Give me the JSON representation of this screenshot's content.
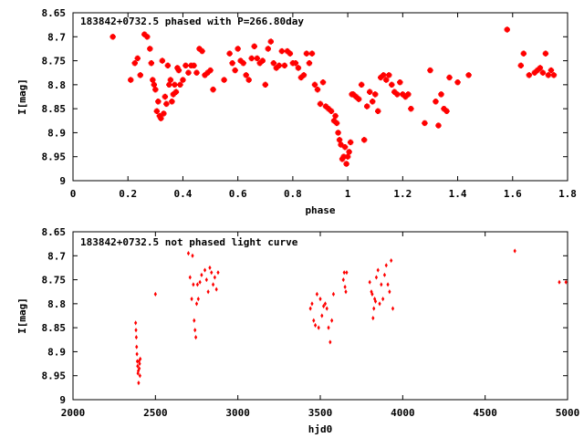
{
  "chart_data": [
    {
      "type": "scatter",
      "title": "183842+0732.5 phased with P=266.80day",
      "xlabel": "phase",
      "ylabel": "I[mag]",
      "xlim": [
        0,
        1.8
      ],
      "ylim": [
        9,
        8.65
      ],
      "y_inverted": true,
      "grid": false,
      "marker_color": "#ff0000",
      "marker": "star",
      "x_ticks": [
        "0",
        "0.2",
        "0.4",
        "0.6",
        "0.8",
        "1",
        "1.2",
        "1.4",
        "1.6",
        "1.8"
      ],
      "y_ticks": [
        "8.65",
        "8.7",
        "8.75",
        "8.8",
        "8.85",
        "8.9",
        "8.95",
        "9"
      ],
      "series": [
        {
          "x": [
            0.145,
            0.21,
            0.225,
            0.235,
            0.245,
            0.26,
            0.27,
            0.28,
            0.285,
            0.29,
            0.295,
            0.3,
            0.305,
            0.31,
            0.315,
            0.32,
            0.325,
            0.33,
            0.335,
            0.34,
            0.345,
            0.35,
            0.355,
            0.36,
            0.365,
            0.37,
            0.375,
            0.38,
            0.385,
            0.39,
            0.4,
            0.41,
            0.42,
            0.43,
            0.44,
            0.45,
            0.46,
            0.47,
            0.48,
            0.49,
            0.5,
            0.51,
            0.55,
            0.57,
            0.58,
            0.59,
            0.6,
            0.61,
            0.62,
            0.63,
            0.64,
            0.65,
            0.66,
            0.67,
            0.68,
            0.69,
            0.7,
            0.71,
            0.72,
            0.73,
            0.74,
            0.75,
            0.76,
            0.77,
            0.78,
            0.79,
            0.8,
            0.81,
            0.82,
            0.83,
            0.84,
            0.85,
            0.86,
            0.87,
            0.88,
            0.89,
            0.9,
            0.91,
            0.92,
            0.93,
            0.94,
            0.95,
            0.955,
            0.96,
            0.965,
            0.97,
            0.975,
            0.98,
            0.985,
            0.99,
            0.995,
            1.0,
            1.005,
            1.01,
            1.015,
            1.02,
            1.03,
            1.04,
            1.05,
            1.06,
            1.07,
            1.08,
            1.09,
            1.1,
            1.11,
            1.12,
            1.13,
            1.14,
            1.15,
            1.16,
            1.17,
            1.18,
            1.19,
            1.2,
            1.21,
            1.22,
            1.23,
            1.28,
            1.3,
            1.32,
            1.33,
            1.34,
            1.35,
            1.36,
            1.37,
            1.4,
            1.44,
            1.58,
            1.63,
            1.64,
            1.66,
            1.68,
            1.69,
            1.7,
            1.71,
            1.72,
            1.73,
            1.74,
            1.75
          ],
          "y": [
            8.7,
            8.79,
            8.755,
            8.745,
            8.78,
            8.695,
            8.7,
            8.725,
            8.755,
            8.79,
            8.8,
            8.81,
            8.855,
            8.835,
            8.865,
            8.87,
            8.75,
            8.86,
            8.825,
            8.84,
            8.76,
            8.8,
            8.79,
            8.835,
            8.82,
            8.8,
            8.815,
            8.765,
            8.77,
            8.8,
            8.79,
            8.76,
            8.775,
            8.76,
            8.76,
            8.775,
            8.725,
            8.73,
            8.78,
            8.775,
            8.77,
            8.81,
            8.79,
            8.735,
            8.755,
            8.77,
            8.725,
            8.75,
            8.755,
            8.78,
            8.79,
            8.745,
            8.72,
            8.745,
            8.755,
            8.75,
            8.8,
            8.725,
            8.71,
            8.755,
            8.765,
            8.76,
            8.73,
            8.76,
            8.73,
            8.735,
            8.755,
            8.755,
            8.765,
            8.785,
            8.78,
            8.735,
            8.755,
            8.735,
            8.8,
            8.81,
            8.84,
            8.795,
            8.845,
            8.85,
            8.855,
            8.875,
            8.865,
            8.88,
            8.9,
            8.915,
            8.925,
            8.955,
            8.95,
            8.93,
            8.965,
            8.95,
            8.94,
            8.92,
            8.82,
            8.82,
            8.825,
            8.83,
            8.8,
            8.915,
            8.845,
            8.815,
            8.835,
            8.82,
            8.855,
            8.785,
            8.78,
            8.79,
            8.78,
            8.8,
            8.815,
            8.82,
            8.795,
            8.82,
            8.825,
            8.82,
            8.85,
            8.88,
            8.77,
            8.835,
            8.885,
            8.82,
            8.85,
            8.855,
            8.785,
            8.795,
            8.78,
            8.685,
            8.76,
            8.735,
            8.78,
            8.775,
            8.77,
            8.765,
            8.775,
            8.735,
            8.78,
            8.77,
            8.78
          ]
        }
      ]
    },
    {
      "type": "scatter",
      "title": "183842+0732.5 not phased light curve",
      "xlabel": "hjd0",
      "ylabel": "I[mag]",
      "xlim": [
        2000,
        5000
      ],
      "ylim": [
        9,
        8.65
      ],
      "y_inverted": true,
      "grid": false,
      "marker_color": "#ff0000",
      "marker": "diamond",
      "x_ticks": [
        "2000",
        "2500",
        "3000",
        "3500",
        "4000",
        "4500",
        "5000"
      ],
      "y_ticks": [
        "8.65",
        "8.7",
        "8.75",
        "8.8",
        "8.85",
        "8.9",
        "8.95",
        "9"
      ],
      "series": [
        {
          "x": [
            2380,
            2382,
            2384,
            2386,
            2388,
            2390,
            2392,
            2394,
            2396,
            2398,
            2400,
            2402,
            2404,
            2406,
            2408,
            2500,
            2700,
            2710,
            2720,
            2725,
            2730,
            2735,
            2740,
            2745,
            2750,
            2755,
            2760,
            2770,
            2780,
            2800,
            2810,
            2820,
            2830,
            2840,
            2850,
            2860,
            2870,
            2880,
            3440,
            3450,
            3460,
            3470,
            3480,
            3490,
            3500,
            3510,
            3520,
            3530,
            3540,
            3550,
            3560,
            3570,
            3580,
            3640,
            3645,
            3650,
            3655,
            3660,
            3800,
            3810,
            3815,
            3820,
            3825,
            3830,
            3835,
            3840,
            3850,
            3860,
            3870,
            3880,
            3890,
            3900,
            3910,
            3920,
            3930,
            3940,
            4680,
            4950,
            4990
          ],
          "y": [
            8.84,
            8.855,
            8.87,
            8.89,
            8.905,
            8.92,
            8.93,
            8.945,
            8.94,
            8.965,
            8.92,
            8.935,
            8.925,
            8.95,
            8.915,
            8.78,
            8.695,
            8.745,
            8.79,
            8.7,
            8.76,
            8.835,
            8.855,
            8.87,
            8.8,
            8.76,
            8.79,
            8.755,
            8.74,
            8.73,
            8.75,
            8.775,
            8.725,
            8.735,
            8.76,
            8.745,
            8.77,
            8.735,
            8.81,
            8.8,
            8.835,
            8.845,
            8.78,
            8.85,
            8.79,
            8.825,
            8.805,
            8.8,
            8.81,
            8.85,
            8.88,
            8.835,
            8.78,
            8.75,
            8.735,
            8.765,
            8.775,
            8.735,
            8.755,
            8.775,
            8.78,
            8.83,
            8.81,
            8.79,
            8.795,
            8.745,
            8.73,
            8.8,
            8.76,
            8.79,
            8.74,
            8.72,
            8.76,
            8.775,
            8.71,
            8.81,
            8.69,
            8.755,
            8.755
          ]
        }
      ]
    }
  ]
}
